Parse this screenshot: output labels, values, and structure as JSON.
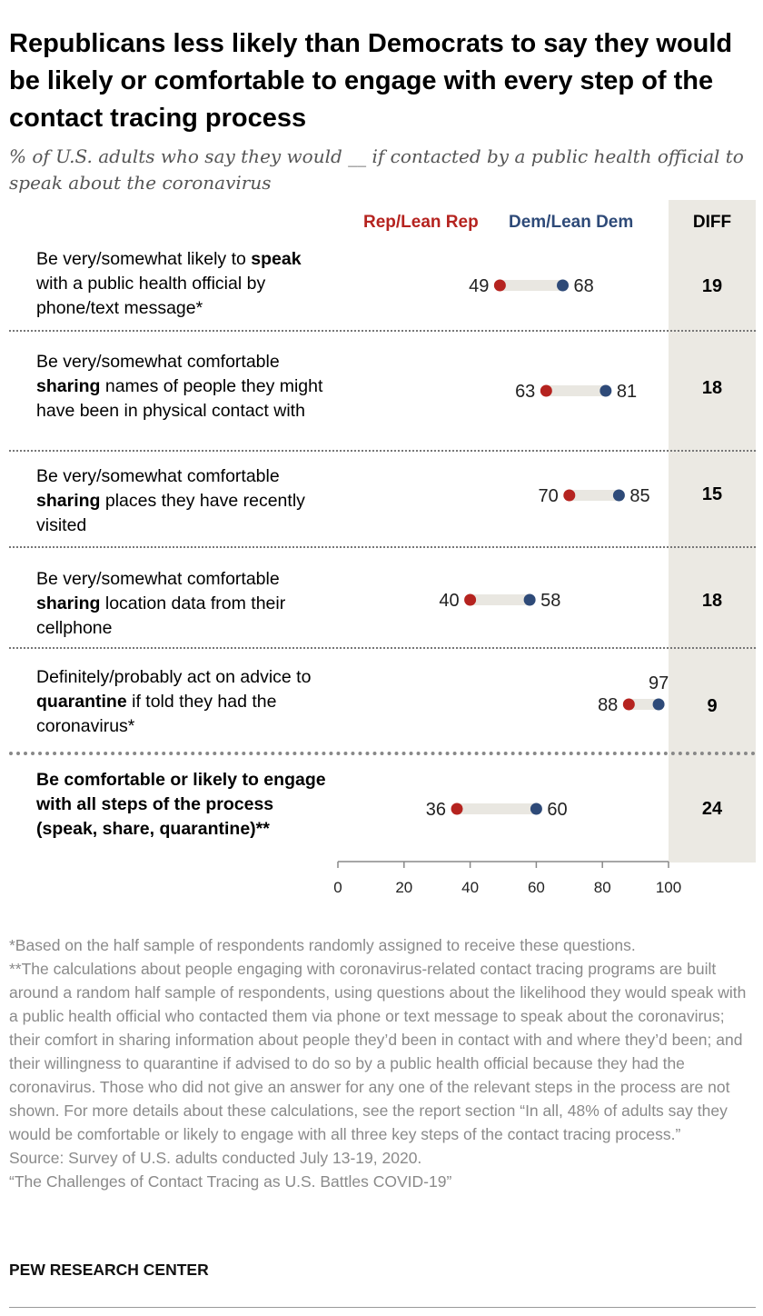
{
  "title": "Republicans less likely than Democrats to say they would be likely or comfortable to engage with every step of the contact tracing process",
  "subtitle": "% of U.S. adults who say they would __ if contacted by a public health official to speak about the coronavirus",
  "colors": {
    "rep": "#b5231f",
    "dem": "#2e4a78",
    "connector": "#e9e7e1",
    "diff_bg": "#ebe9e3"
  },
  "chart_data": {
    "type": "dot",
    "legend": {
      "placement": "top",
      "rep": "Rep/Lean Rep",
      "dem": "Dem/Lean Dem",
      "diff": "DIFF"
    },
    "x_ticks": [
      "0",
      "20",
      "40",
      "60",
      "80",
      "100"
    ],
    "xlim": [
      0,
      100
    ],
    "rows": [
      {
        "pre": "Be very/somewhat likely to ",
        "bold": "speak",
        "post": " with a public health official by phone/text message*",
        "rep": 49,
        "dem": 68,
        "diff": "19"
      },
      {
        "pre": "Be very/somewhat comfortable ",
        "bold": "sharing",
        "post": " names of people they might have been in physical contact with",
        "rep": 63,
        "dem": 81,
        "diff": "18"
      },
      {
        "pre": "Be very/somewhat comfortable ",
        "bold": "sharing",
        "post": " places they have recently visited",
        "rep": 70,
        "dem": 85,
        "diff": "15"
      },
      {
        "pre": "Be very/somewhat comfortable ",
        "bold": "sharing",
        "post": " location data from their cellphone",
        "rep": 40,
        "dem": 58,
        "diff": "18"
      },
      {
        "pre": "Definitely/probably act on advice to ",
        "bold": "quarantine",
        "post": " if told they had the coronavirus*",
        "rep": 88,
        "dem": 97,
        "diff": "9"
      },
      {
        "pre": "",
        "bold": "Be comfortable or likely to engage with all steps of the process (speak, share, quarantine)**",
        "post": "",
        "rep": 36,
        "dem": 60,
        "diff": "24"
      }
    ]
  },
  "notes": {
    "note1": "*Based on the half sample of respondents randomly assigned to receive these questions.",
    "note2": "**The calculations about people engaging with coronavirus-related contact tracing programs are built around a random half sample of respondents, using questions about the likelihood they would speak with a public health official who contacted them via phone or text message to speak about the coronavirus; their comfort in sharing information about people they’d been in contact with and where they’d been; and their willingness to quarantine if advised to do so by a public health official because they had the coronavirus. Those who did not give an answer for any one of the relevant steps in the process are not shown. For more details about these calculations, see the report section “In all, 48% of adults say they would be comfortable or likely to engage with all three key steps of the contact tracing process.”",
    "source": "Source: Survey of U.S. adults conducted July 13-19, 2020.",
    "report": "“The Challenges of Contact Tracing as U.S. Battles COVID-19”"
  },
  "brand": "PEW RESEARCH CENTER"
}
